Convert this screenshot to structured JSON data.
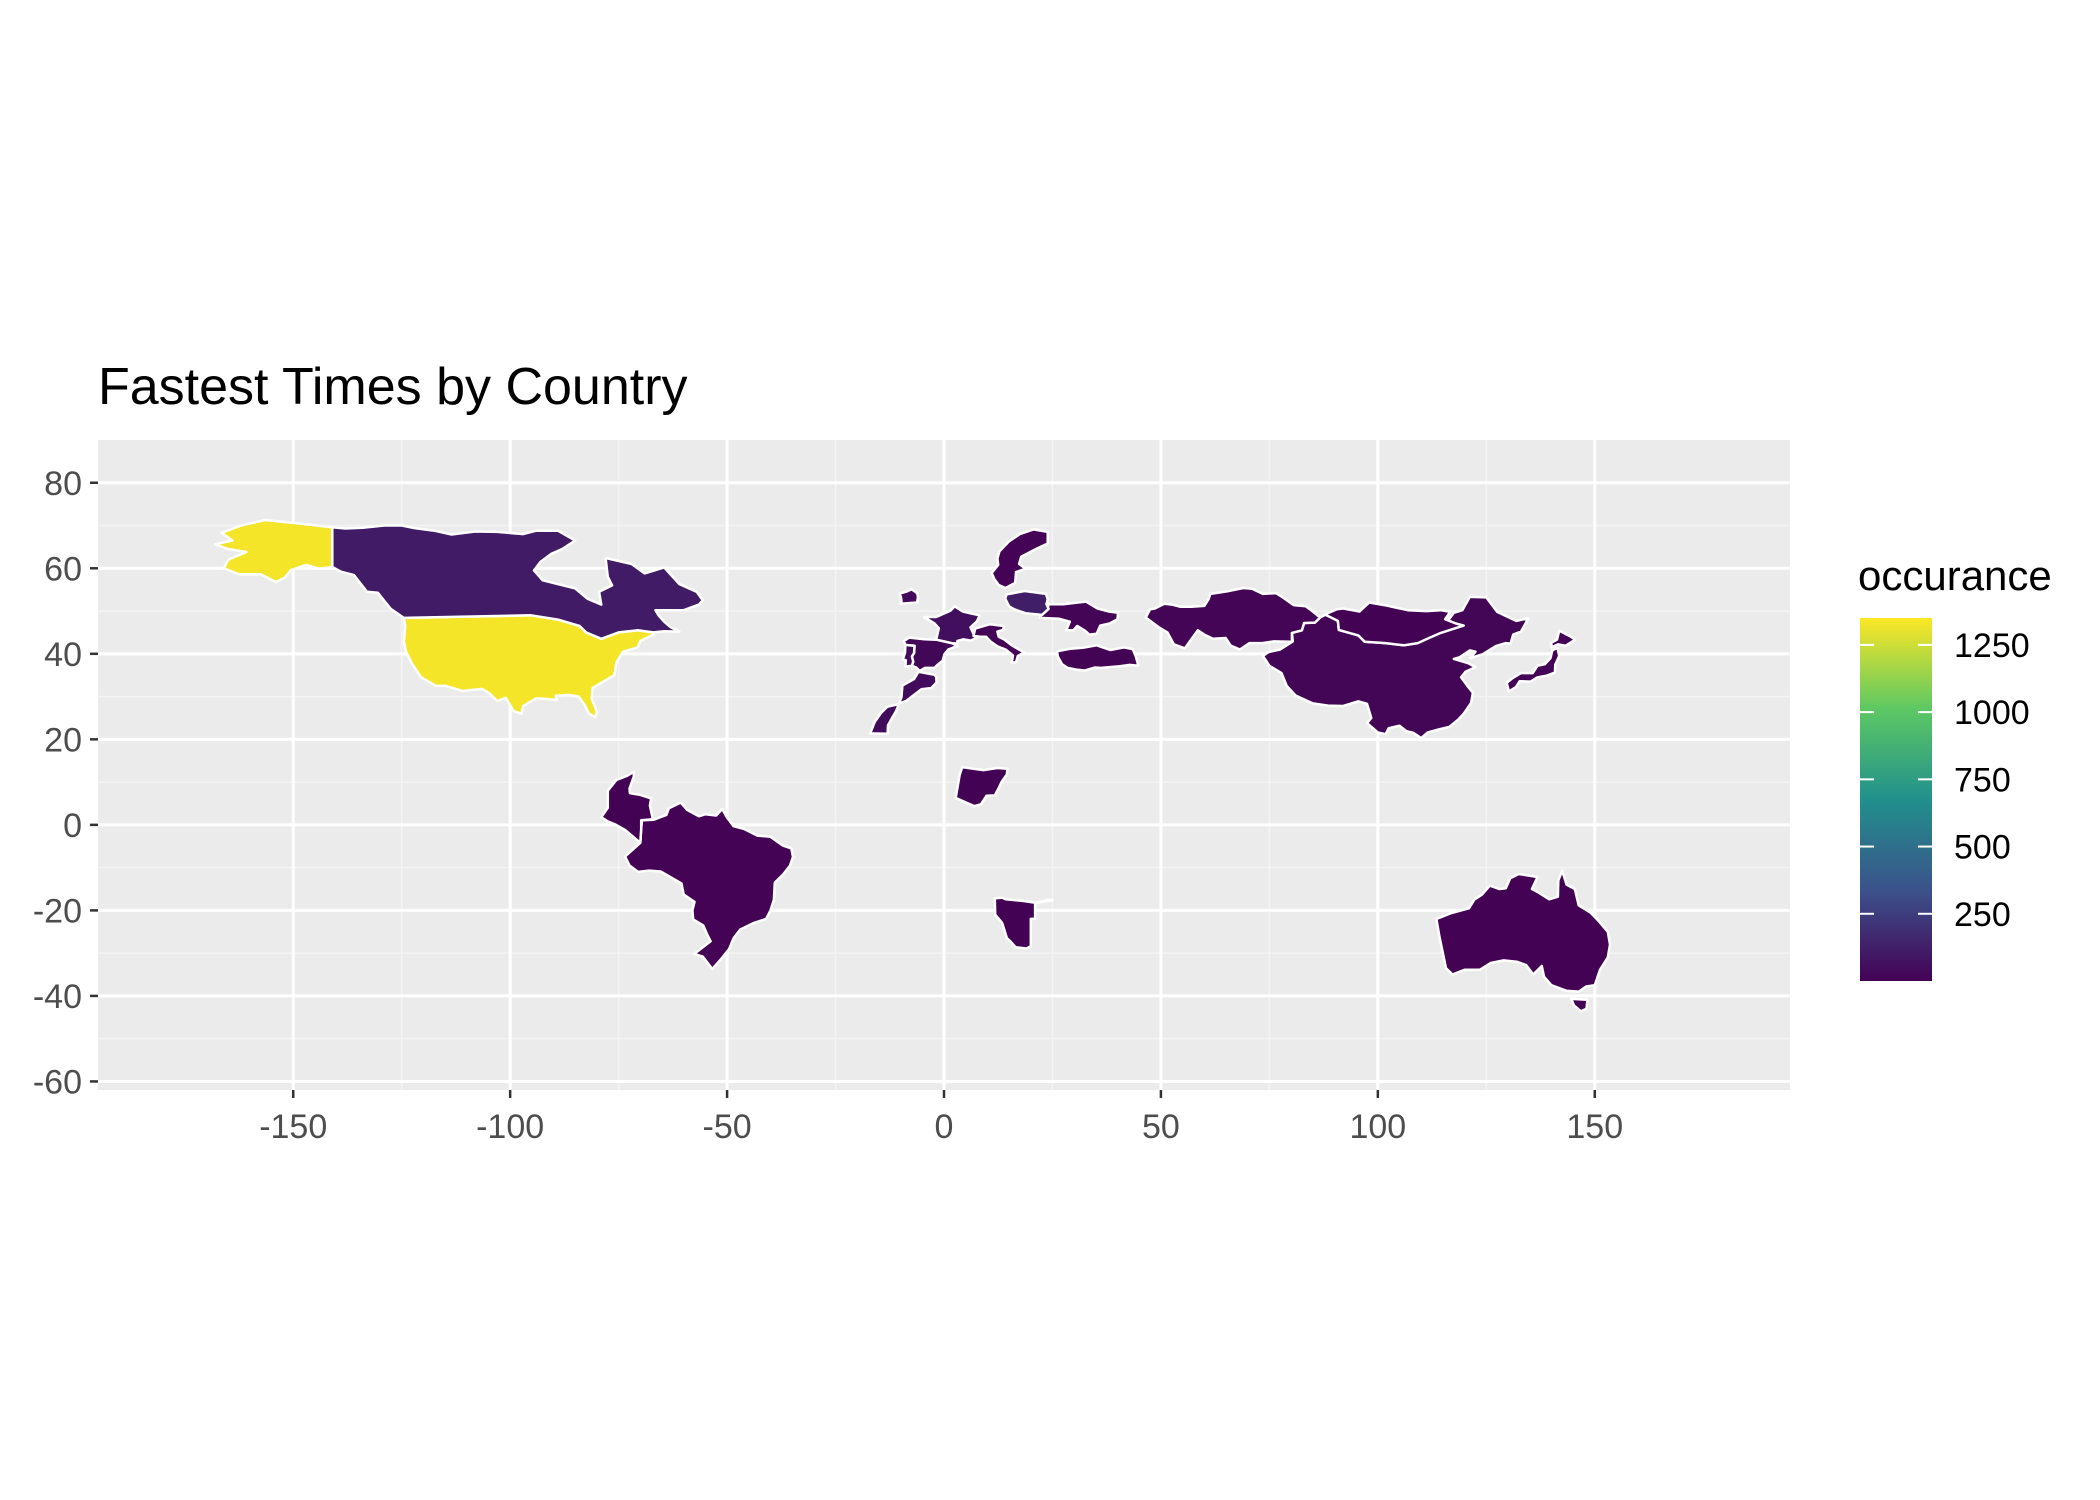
{
  "chart_data": {
    "type": "choropleth-map",
    "title": "Fastest Times by Country",
    "xlabel": "",
    "ylabel": "",
    "xlim": [
      -195,
      195
    ],
    "ylim": [
      -62,
      90
    ],
    "x_ticks": [
      -150,
      -100,
      -50,
      0,
      50,
      100,
      150
    ],
    "y_ticks": [
      80,
      60,
      40,
      20,
      0,
      -20,
      -40,
      -60
    ],
    "grid": true,
    "panel_background": "#ebebeb",
    "grid_color": "#ffffff",
    "country_border_color": "#ffffff",
    "legend": {
      "title": "occurance",
      "placement": "right",
      "range": [
        0,
        1350
      ],
      "breaks": [
        1250,
        1000,
        750,
        500,
        250
      ],
      "colors": [
        "#440154",
        "#3b528b",
        "#21908c",
        "#5dc863",
        "#fde725"
      ]
    },
    "regions": [
      {
        "name": "USA",
        "occurance": 1330
      },
      {
        "name": "Alaska",
        "occurance": 1330
      },
      {
        "name": "Canada",
        "occurance": 110
      },
      {
        "name": "Brazil",
        "occurance": 8
      },
      {
        "name": "Australia",
        "occurance": 6
      },
      {
        "name": "China",
        "occurance": 20
      },
      {
        "name": "Kazakhstan",
        "occurance": 15
      },
      {
        "name": "Japan",
        "occurance": 10
      },
      {
        "name": "Mongolia",
        "occurance": 5
      },
      {
        "name": "France",
        "occurance": 60
      },
      {
        "name": "Spain",
        "occurance": 25
      },
      {
        "name": "Portugal",
        "occurance": 50
      },
      {
        "name": "Morocco",
        "occurance": 40
      },
      {
        "name": "Italy",
        "occurance": 10
      },
      {
        "name": "Ukraine",
        "occurance": 15
      },
      {
        "name": "Poland",
        "occurance": 120
      },
      {
        "name": "Sweden",
        "occurance": 10
      },
      {
        "name": "Turkey",
        "occurance": 12
      },
      {
        "name": "Nigeria",
        "occurance": 5
      },
      {
        "name": "Namibia",
        "occurance": 5
      },
      {
        "name": "Ireland",
        "occurance": 40
      },
      {
        "name": "Colombia",
        "occurance": 5
      }
    ]
  }
}
